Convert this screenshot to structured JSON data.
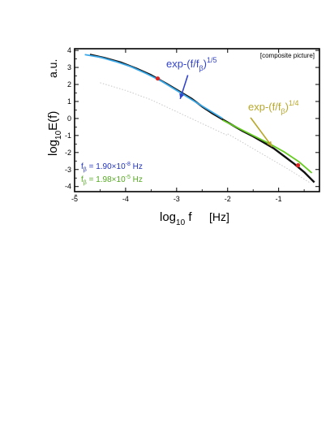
{
  "chart_data": {
    "type": "line",
    "annotation_box": "[composite picture]",
    "xlabel": {
      "main": "log",
      "sub": "10",
      "tail": " f",
      "unit": "[Hz]"
    },
    "ylabel": {
      "main": "log",
      "sub": "10",
      "tail": "E(f)",
      "unit": "a.u."
    },
    "xlim": [
      -5,
      -0.2
    ],
    "ylim": [
      -4.3,
      4.1
    ],
    "x_ticks": [
      -5,
      -4,
      -3,
      -2,
      -1
    ],
    "y_ticks": [
      -4,
      -3,
      -2,
      -1,
      0,
      1,
      2,
      3,
      4
    ],
    "fit_labels": [
      {
        "base": "exp-(f/f",
        "sub": "β",
        "close": ")",
        "exponent": "1/5",
        "color": "#3344cc",
        "anchor": [
          -2.78,
          2.55
        ],
        "arrow_to": [
          -2.93,
          1.15
        ]
      },
      {
        "base": "exp-(f/f",
        "sub": "β",
        "close": ")",
        "exponent": "1/4",
        "color": "#b8a82a",
        "anchor": [
          -1.55,
          0.05
        ],
        "arrow_to": [
          -1.13,
          -1.65
        ]
      }
    ],
    "params": [
      {
        "sym": "f",
        "sub": "β",
        "text": " = 1.90×10",
        "exp": "-8",
        "unit": " Hz",
        "color": "#2233bb"
      },
      {
        "sym": "f",
        "sub": "β",
        "text": " = 1.98×10",
        "exp": "-5",
        "unit": " Hz",
        "color": "#55aa22"
      }
    ],
    "series": [
      {
        "style": "black-data",
        "x": [
          -4.7,
          -4.4,
          -4.1,
          -3.8,
          -3.5,
          -3.2,
          -2.95,
          -2.7,
          -2.5,
          -2.3,
          -2.1,
          -1.9,
          -1.7,
          -1.5,
          -1.3,
          -1.1,
          -0.9,
          -0.7,
          -0.5,
          -0.3
        ],
        "y": [
          3.75,
          3.55,
          3.3,
          2.95,
          2.55,
          2.05,
          1.6,
          1.15,
          0.7,
          0.3,
          -0.05,
          -0.4,
          -0.75,
          -1.05,
          -1.4,
          -1.75,
          -2.2,
          -2.65,
          -3.15,
          -3.75
        ]
      },
      {
        "style": "cyan-fit",
        "x": [
          -4.8,
          -4.5,
          -4.2,
          -3.9,
          -3.6,
          -3.3,
          -3.0,
          -2.7,
          -2.4,
          -2.1
        ],
        "y": [
          3.75,
          3.6,
          3.35,
          3.05,
          2.65,
          2.2,
          1.65,
          1.1,
          0.55,
          0.0
        ]
      },
      {
        "style": "green-fit",
        "x": [
          -2.1,
          -1.8,
          -1.5,
          -1.2,
          -0.9,
          -0.6,
          -0.35
        ],
        "y": [
          -0.1,
          -0.55,
          -1.0,
          -1.45,
          -1.95,
          -2.55,
          -3.2
        ]
      },
      {
        "style": "grey-dotted",
        "x": [
          -4.5,
          -4.0,
          -3.5,
          -3.0,
          -2.5,
          -2.0
        ],
        "y": [
          2.1,
          1.65,
          1.1,
          0.4,
          -0.3,
          -1.0
        ]
      },
      {
        "style": "grey-dotted",
        "x": [
          -2.0,
          -1.6,
          -1.2,
          -0.8,
          -0.4
        ],
        "y": [
          -0.9,
          -1.6,
          -2.3,
          -3.0,
          -3.75
        ]
      }
    ],
    "markers": [
      {
        "x": -3.37,
        "y": 2.35,
        "color": "#dd2222"
      },
      {
        "x": -0.62,
        "y": -2.75,
        "color": "#dd2222"
      }
    ]
  }
}
